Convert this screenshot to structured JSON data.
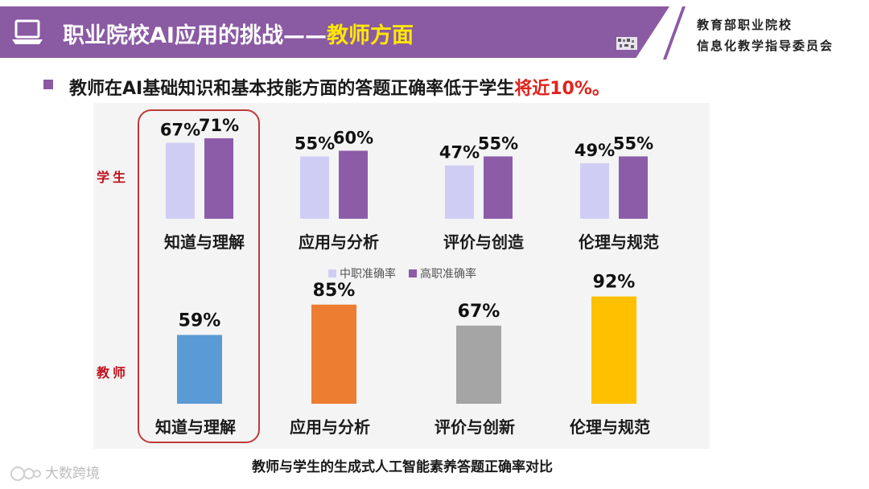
{
  "header": {
    "title_prefix": "职业院校AI应用的挑战——",
    "title_highlight": "教师方面",
    "org_line1": "教育部职业院校",
    "org_line2": "信息化教学指导委员会"
  },
  "subtitle": {
    "text": "教师在AI基础知识和基本技能方面的答题正确率低于学生",
    "highlight": "将近10%。"
  },
  "caption": "教师与学生的生成式人工智能素养答题正确率对比",
  "watermark": "大数跨境",
  "colors": {
    "brand_purple": "#8a5aa3",
    "title_highlight": "#ffe800",
    "alert_red": "#e0231c",
    "side_label_red": "#c0111e",
    "highlight_box": "#c0393b"
  },
  "icons": [
    "laptop-icon",
    "qr-code-icon"
  ],
  "chart_data": [
    {
      "type": "bar",
      "group_label": "学生",
      "categories": [
        "知道与理解",
        "应用与分析",
        "评价与创造",
        "伦理与规范"
      ],
      "series": [
        {
          "name": "中职准确率",
          "values": [
            67,
            55,
            47,
            49
          ],
          "color": "#d0cdf5"
        },
        {
          "name": "高职准确率",
          "values": [
            71,
            60,
            55,
            55
          ],
          "color": "#8c5ca8"
        }
      ],
      "value_suffix": "%",
      "ylim": [
        0,
        100
      ],
      "grid": false,
      "legend": "bottom-center"
    },
    {
      "type": "bar",
      "group_label": "教师",
      "categories": [
        "知道与理解",
        "应用与分析",
        "评价与创新",
        "伦理与规范"
      ],
      "values": [
        59,
        85,
        67,
        92
      ],
      "colors": [
        "#5b9bd5",
        "#ed7d31",
        "#a5a5a5",
        "#ffc000"
      ],
      "value_suffix": "%",
      "ylim": [
        0,
        100
      ],
      "grid": false
    }
  ],
  "highlighted_category": "知道与理解"
}
